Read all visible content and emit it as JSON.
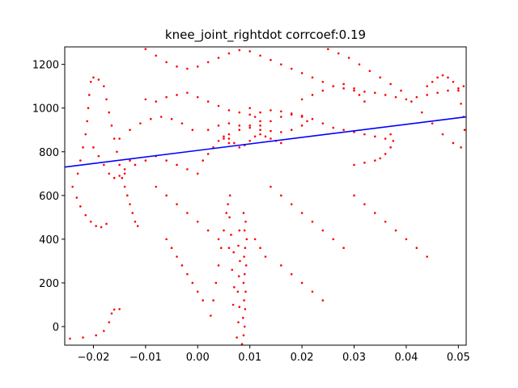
{
  "chart_data": {
    "type": "scatter",
    "title": "knee_joint_rightdot corrcoef:0.19",
    "xlabel": "",
    "ylabel": "",
    "xlim": [
      -0.0255,
      0.0515
    ],
    "ylim": [
      -85,
      1280
    ],
    "x_ticks": [
      -0.02,
      -0.01,
      0.0,
      0.01,
      0.02,
      0.03,
      0.04,
      0.05
    ],
    "x_tick_labels": [
      "−0.02",
      "−0.01",
      "0.00",
      "0.01",
      "0.02",
      "0.03",
      "0.04",
      "0.05"
    ],
    "y_ticks": [
      0,
      200,
      400,
      600,
      800,
      1000,
      1200
    ],
    "y_tick_labels": [
      "0",
      "200",
      "400",
      "600",
      "800",
      "1000",
      "1200"
    ],
    "grid": false,
    "legend": "none",
    "series": [
      {
        "kind": "scatter",
        "color": "#ff0000",
        "points": [
          [
            0.0085,
            -80
          ],
          [
            0.0088,
            -40
          ],
          [
            0.009,
            0
          ],
          [
            0.0087,
            40
          ],
          [
            0.0091,
            80
          ],
          [
            0.0089,
            120
          ],
          [
            0.0092,
            160
          ],
          [
            0.0088,
            200
          ],
          [
            0.009,
            240
          ],
          [
            0.0093,
            280
          ],
          [
            0.0089,
            320
          ],
          [
            0.0091,
            360
          ],
          [
            0.0094,
            400
          ],
          [
            0.009,
            440
          ],
          [
            0.0092,
            480
          ],
          [
            0.0088,
            520
          ],
          [
            0.0075,
            -50
          ],
          [
            0.0078,
            20
          ],
          [
            0.008,
            90
          ],
          [
            0.0077,
            160
          ],
          [
            0.0079,
            230
          ],
          [
            0.0081,
            300
          ],
          [
            0.0078,
            370
          ],
          [
            0.008,
            440
          ],
          [
            0.0068,
            100
          ],
          [
            0.007,
            180
          ],
          [
            0.0066,
            260
          ],
          [
            0.0069,
            340
          ],
          [
            0.0064,
            420
          ],
          [
            0.0061,
            500
          ],
          [
            0.0058,
            560
          ],
          [
            0.0062,
            600
          ],
          [
            0.0055,
            520
          ],
          [
            0.005,
            440
          ],
          [
            0.0045,
            360
          ],
          [
            0.004,
            280
          ],
          [
            0.0035,
            200
          ],
          [
            0.003,
            120
          ],
          [
            0.0025,
            50
          ],
          [
            -0.0245,
            -55
          ],
          [
            -0.022,
            -50
          ],
          [
            -0.0195,
            -40
          ],
          [
            -0.018,
            -20
          ],
          [
            -0.017,
            20
          ],
          [
            -0.0165,
            60
          ],
          [
            -0.016,
            78
          ],
          [
            -0.015,
            80
          ],
          [
            -0.014,
            700
          ],
          [
            -0.012,
            740
          ],
          [
            -0.01,
            760
          ],
          [
            -0.008,
            780
          ],
          [
            -0.006,
            760
          ],
          [
            -0.004,
            740
          ],
          [
            -0.002,
            720
          ],
          [
            0.0,
            700
          ],
          [
            0.001,
            760
          ],
          [
            0.002,
            790
          ],
          [
            0.003,
            820
          ],
          [
            0.004,
            850
          ],
          [
            0.005,
            870
          ],
          [
            0.006,
            860
          ],
          [
            0.007,
            840
          ],
          [
            0.008,
            820
          ],
          [
            0.009,
            830
          ],
          [
            0.01,
            850
          ],
          [
            0.011,
            870
          ],
          [
            0.012,
            880
          ],
          [
            0.013,
            870
          ],
          [
            0.014,
            860
          ],
          [
            0.015,
            850
          ],
          [
            0.016,
            840
          ],
          [
            0.002,
            900
          ],
          [
            0.004,
            920
          ],
          [
            0.006,
            930
          ],
          [
            0.008,
            920
          ],
          [
            0.01,
            910
          ],
          [
            0.012,
            920
          ],
          [
            0.014,
            940
          ],
          [
            0.016,
            960
          ],
          [
            0.018,
            970
          ],
          [
            0.02,
            960
          ],
          [
            0.021,
            940
          ],
          [
            0.02,
            920
          ],
          [
            0.018,
            900
          ],
          [
            0.016,
            890
          ],
          [
            0.014,
            895
          ],
          [
            0.012,
            900
          ],
          [
            -0.01,
            1040
          ],
          [
            -0.008,
            1030
          ],
          [
            -0.006,
            1050
          ],
          [
            -0.004,
            1060
          ],
          [
            -0.002,
            1070
          ],
          [
            0.0,
            1050
          ],
          [
            0.002,
            1030
          ],
          [
            0.004,
            1010
          ],
          [
            0.006,
            990
          ],
          [
            0.008,
            980
          ],
          [
            0.01,
            970
          ],
          [
            0.012,
            980
          ],
          [
            0.014,
            990
          ],
          [
            0.016,
            985
          ],
          [
            0.018,
            975
          ],
          [
            0.02,
            965
          ],
          [
            0.022,
            950
          ],
          [
            0.024,
            930
          ],
          [
            0.026,
            910
          ],
          [
            0.028,
            900
          ],
          [
            0.03,
            890
          ],
          [
            0.032,
            880
          ],
          [
            0.034,
            870
          ],
          [
            0.036,
            860
          ],
          [
            0.037,
            880
          ],
          [
            0.0375,
            850
          ],
          [
            0.037,
            820
          ],
          [
            0.036,
            790
          ],
          [
            0.035,
            770
          ],
          [
            0.034,
            760
          ],
          [
            0.032,
            750
          ],
          [
            0.03,
            740
          ],
          [
            -0.023,
            700
          ],
          [
            -0.0225,
            760
          ],
          [
            -0.022,
            820
          ],
          [
            -0.0215,
            880
          ],
          [
            -0.0212,
            940
          ],
          [
            -0.021,
            1000
          ],
          [
            -0.0208,
            1060
          ],
          [
            -0.0205,
            1120
          ],
          [
            -0.02,
            1140
          ],
          [
            -0.019,
            1130
          ],
          [
            -0.018,
            1100
          ],
          [
            -0.0175,
            1040
          ],
          [
            -0.017,
            980
          ],
          [
            -0.0165,
            920
          ],
          [
            -0.016,
            860
          ],
          [
            -0.0155,
            800
          ],
          [
            -0.015,
            740
          ],
          [
            -0.0145,
            680
          ],
          [
            -0.014,
            640
          ],
          [
            -0.0135,
            600
          ],
          [
            -0.013,
            560
          ],
          [
            -0.0125,
            520
          ],
          [
            -0.012,
            480
          ],
          [
            -0.0115,
            460
          ],
          [
            -0.024,
            640
          ],
          [
            -0.0232,
            590
          ],
          [
            -0.0225,
            550
          ],
          [
            -0.0215,
            510
          ],
          [
            -0.0205,
            480
          ],
          [
            -0.0195,
            460
          ],
          [
            -0.0185,
            455
          ],
          [
            -0.0175,
            470
          ],
          [
            -0.01,
            1270
          ],
          [
            -0.008,
            1240
          ],
          [
            -0.006,
            1210
          ],
          [
            -0.004,
            1190
          ],
          [
            -0.002,
            1180
          ],
          [
            0.0,
            1190
          ],
          [
            0.002,
            1210
          ],
          [
            0.004,
            1230
          ],
          [
            0.006,
            1250
          ],
          [
            0.008,
            1265
          ],
          [
            0.01,
            1260
          ],
          [
            0.012,
            1240
          ],
          [
            0.014,
            1220
          ],
          [
            0.016,
            1200
          ],
          [
            0.018,
            1180
          ],
          [
            0.02,
            1160
          ],
          [
            0.022,
            1140
          ],
          [
            0.024,
            1120
          ],
          [
            0.026,
            1100
          ],
          [
            0.028,
            1090
          ],
          [
            0.03,
            1080
          ],
          [
            0.032,
            1075
          ],
          [
            0.034,
            1070
          ],
          [
            0.036,
            1060
          ],
          [
            0.038,
            1050
          ],
          [
            0.04,
            1040
          ],
          [
            0.042,
            1050
          ],
          [
            0.044,
            1060
          ],
          [
            0.046,
            1070
          ],
          [
            0.048,
            1080
          ],
          [
            0.05,
            1090
          ],
          [
            0.051,
            1100
          ],
          [
            0.025,
            1270
          ],
          [
            0.027,
            1250
          ],
          [
            0.029,
            1230
          ],
          [
            0.031,
            1200
          ],
          [
            0.033,
            1170
          ],
          [
            0.035,
            1140
          ],
          [
            0.037,
            1110
          ],
          [
            0.039,
            1080
          ],
          [
            0.041,
            1030
          ],
          [
            0.043,
            980
          ],
          [
            0.045,
            930
          ],
          [
            0.047,
            880
          ],
          [
            0.049,
            840
          ],
          [
            0.0505,
            820
          ],
          [
            0.0512,
            900
          ],
          [
            0.051,
            960
          ],
          [
            0.0505,
            1020
          ],
          [
            0.05,
            1080
          ],
          [
            0.049,
            1120
          ],
          [
            0.048,
            1140
          ],
          [
            0.047,
            1150
          ],
          [
            0.046,
            1140
          ],
          [
            0.045,
            1120
          ],
          [
            0.044,
            1100
          ],
          [
            -0.008,
            640
          ],
          [
            -0.006,
            600
          ],
          [
            -0.004,
            560
          ],
          [
            -0.002,
            520
          ],
          [
            0.0,
            480
          ],
          [
            0.002,
            440
          ],
          [
            0.004,
            400
          ],
          [
            0.006,
            360
          ],
          [
            0.014,
            640
          ],
          [
            0.016,
            600
          ],
          [
            0.018,
            560
          ],
          [
            0.02,
            520
          ],
          [
            0.022,
            480
          ],
          [
            0.024,
            440
          ],
          [
            0.026,
            400
          ],
          [
            0.028,
            360
          ],
          [
            0.03,
            600
          ],
          [
            0.032,
            560
          ],
          [
            0.034,
            520
          ],
          [
            0.036,
            480
          ],
          [
            0.038,
            440
          ],
          [
            0.04,
            400
          ],
          [
            0.042,
            360
          ],
          [
            0.044,
            320
          ],
          [
            0.016,
            280
          ],
          [
            0.018,
            240
          ],
          [
            0.02,
            200
          ],
          [
            0.022,
            160
          ],
          [
            0.024,
            120
          ],
          [
            0.013,
            320
          ],
          [
            0.012,
            360
          ],
          [
            0.011,
            400
          ],
          [
            -0.006,
            400
          ],
          [
            -0.005,
            360
          ],
          [
            -0.004,
            320
          ],
          [
            -0.003,
            280
          ],
          [
            -0.002,
            240
          ],
          [
            -0.001,
            200
          ],
          [
            0.0,
            160
          ],
          [
            0.001,
            120
          ],
          [
            0.01,
            1000
          ],
          [
            0.011,
            960
          ],
          [
            0.012,
            940
          ],
          [
            0.01,
            920
          ],
          [
            0.008,
            900
          ],
          [
            0.006,
            880
          ],
          [
            0.005,
            860
          ],
          [
            0.006,
            840
          ],
          [
            0.02,
            1040
          ],
          [
            0.022,
            1060
          ],
          [
            0.024,
            1080
          ],
          [
            0.026,
            1100
          ],
          [
            0.028,
            1110
          ],
          [
            0.03,
            1090
          ],
          [
            0.031,
            1060
          ],
          [
            0.032,
            1030
          ],
          [
            -0.015,
            860
          ],
          [
            -0.013,
            900
          ],
          [
            -0.011,
            930
          ],
          [
            -0.009,
            950
          ],
          [
            -0.007,
            960
          ],
          [
            -0.005,
            950
          ],
          [
            -0.003,
            930
          ],
          [
            -0.001,
            900
          ],
          [
            -0.02,
            820
          ],
          [
            -0.019,
            780
          ],
          [
            -0.018,
            740
          ],
          [
            -0.017,
            700
          ],
          [
            -0.016,
            680
          ],
          [
            -0.015,
            690
          ],
          [
            -0.014,
            720
          ],
          [
            -0.013,
            760
          ]
        ]
      },
      {
        "kind": "line",
        "color": "#0000ff",
        "points": [
          [
            -0.0255,
            730
          ],
          [
            0.0515,
            960
          ]
        ]
      }
    ]
  }
}
